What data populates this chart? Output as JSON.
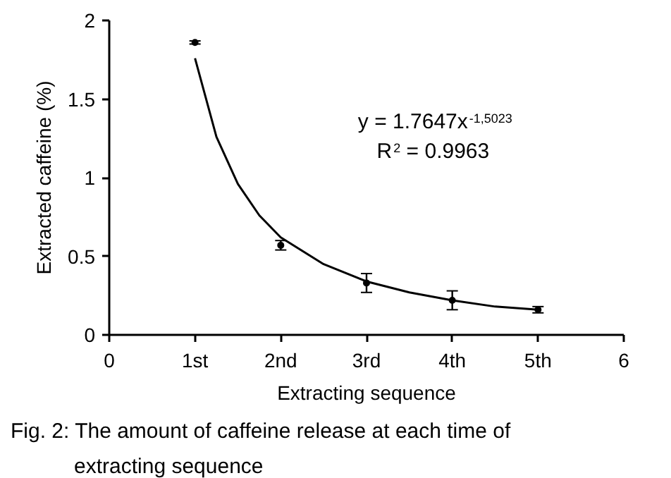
{
  "chart_data": {
    "type": "scatter",
    "xlabel": "Extracting sequence",
    "ylabel": "Extracted caffeine (%)",
    "xlim": [
      0,
      6
    ],
    "xticks": [
      0,
      {
        "value": 1,
        "label": "1st"
      },
      {
        "value": 2,
        "label": "2nd"
      },
      {
        "value": 3,
        "label": "3rd"
      },
      {
        "value": 4,
        "label": "4th"
      },
      {
        "value": 5,
        "label": "5th"
      },
      6
    ],
    "ylim": [
      0,
      2
    ],
    "yticks": [
      0,
      0.5,
      1,
      1.5,
      2
    ],
    "grid": false,
    "marker": "circle",
    "series": [
      {
        "color": "#000000",
        "x": [
          1,
          2,
          3,
          4,
          5
        ],
        "values": [
          1.86,
          0.57,
          0.33,
          0.22,
          0.16
        ],
        "errors": [
          0.01,
          0.03,
          0.06,
          0.06,
          0.02
        ]
      },
      {
        "type": "line",
        "color": "#000000",
        "marker": "none",
        "line_style": "solid",
        "x": [
          1,
          1.25,
          1.5,
          1.75,
          2,
          2.5,
          3,
          3.5,
          4,
          4.5,
          5
        ],
        "values": [
          1.76,
          1.26,
          0.96,
          0.76,
          0.62,
          0.45,
          0.34,
          0.27,
          0.22,
          0.18,
          0.16
        ]
      }
    ],
    "annotations": [
      "y = 1.7647x$^{-1,5023}$",
      "R$^{2}$ = 0.9963",
      "Fig. 2: The amount of caffeine release at each time of extracting sequence"
    ]
  }
}
